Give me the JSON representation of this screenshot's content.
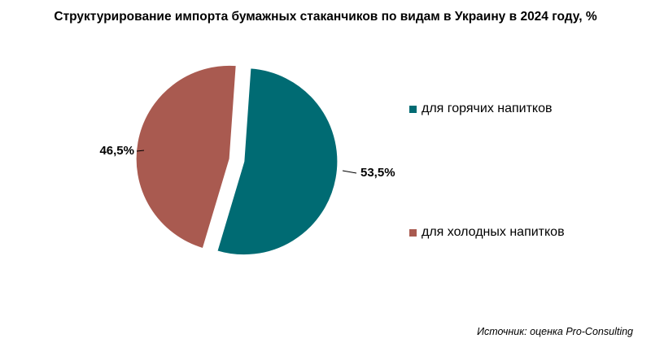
{
  "chart_data": {
    "type": "pie",
    "title": "Структурирование импорта бумажных стаканчиков по видам в Украину в 2024 году, %",
    "slices": [
      {
        "name": "для горячих напитков",
        "value": 53.5,
        "label": "53,5%",
        "color": "#006b73"
      },
      {
        "name": "для холодных напитков",
        "value": 46.5,
        "label": "46,5%",
        "color": "#a95a50"
      }
    ],
    "legend_position": "right",
    "exploded": true
  },
  "source": "Источник: оценка Pro-Consulting"
}
